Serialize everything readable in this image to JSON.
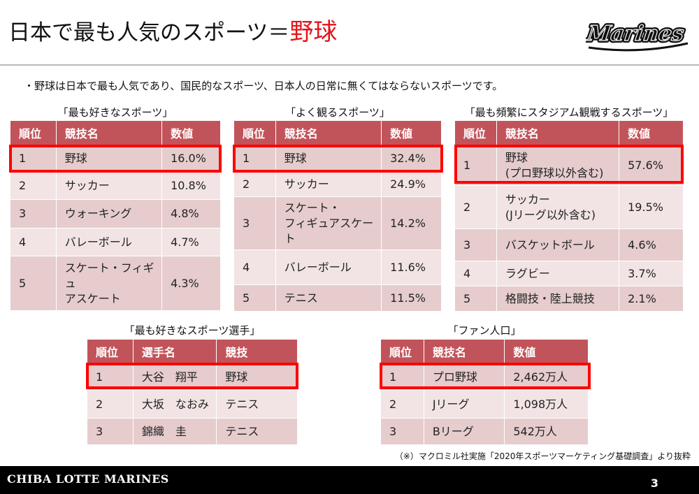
{
  "header": {
    "title_main": "日本で最も人気のスポーツ＝",
    "title_accent": "野球",
    "logo_text": "Marines",
    "accent_color": "#e5141a"
  },
  "intro": "・野球は日本で最も人気であり、国民的なスポーツ、日本人の日常に無くてはならないスポーツです。",
  "favorite_sports": {
    "caption": "「最も好きなスポーツ」",
    "headers": [
      "順位",
      "競技名",
      "数値"
    ],
    "rows": [
      {
        "rank": "1",
        "name": "野球",
        "value": "16.0%"
      },
      {
        "rank": "2",
        "name": "サッカー",
        "value": "10.8%"
      },
      {
        "rank": "3",
        "name": "ウォーキング",
        "value": "4.8%"
      },
      {
        "rank": "4",
        "name": "バレーボール",
        "value": "4.7%"
      },
      {
        "rank": "5",
        "name": "スケート・フィギュ\nアスケート",
        "value": "4.3%"
      }
    ]
  },
  "watched_sports": {
    "caption": "「よく観るスポーツ」",
    "headers": [
      "順位",
      "競技名",
      "数値"
    ],
    "rows": [
      {
        "rank": "1",
        "name": "野球",
        "value": "32.4%"
      },
      {
        "rank": "2",
        "name": "サッカー",
        "value": "24.9%"
      },
      {
        "rank": "3",
        "name": "スケート・\nフィギュアスケート",
        "value": "14.2%"
      },
      {
        "rank": "4",
        "name": "バレーボール",
        "value": "11.6%"
      },
      {
        "rank": "5",
        "name": "テニス",
        "value": "11.5%"
      }
    ]
  },
  "stadium_sports": {
    "caption": "「最も頻繁にスタジアム観戦するスポーツ」",
    "headers": [
      "順位",
      "競技名",
      "数値"
    ],
    "rows": [
      {
        "rank": "1",
        "name": "野球\n(プロ野球以外含む)",
        "value": "57.6%"
      },
      {
        "rank": "2",
        "name": "サッカー\n(Jリーグ以外含む)",
        "value": "19.5%"
      },
      {
        "rank": "3",
        "name": "バスケットボール",
        "value": "4.6%"
      },
      {
        "rank": "4",
        "name": "ラグビー",
        "value": "3.7%"
      },
      {
        "rank": "5",
        "name": "格闘技・陸上競技",
        "value": "2.1%"
      }
    ]
  },
  "favorite_athletes": {
    "caption": "「最も好きなスポーツ選手」",
    "headers": [
      "順位",
      "選手名",
      "競技"
    ],
    "rows": [
      {
        "rank": "1",
        "name": "大谷　翔平",
        "value": "野球"
      },
      {
        "rank": "2",
        "name": "大坂　なおみ",
        "value": "テニス"
      },
      {
        "rank": "3",
        "name": "錦織　圭",
        "value": "テニス"
      }
    ]
  },
  "fan_population": {
    "caption": "「ファン人口」",
    "headers": [
      "順位",
      "競技名",
      "数値"
    ],
    "rows": [
      {
        "rank": "1",
        "name": "プロ野球",
        "value": "2,462万人"
      },
      {
        "rank": "2",
        "name": "Jリーグ",
        "value": "1,098万人"
      },
      {
        "rank": "3",
        "name": "Bリーグ",
        "value": "542万人"
      }
    ]
  },
  "source": "（※）マクロミル社実施「2020年スポーツマーケティング基礎調査」より抜粋",
  "footer": {
    "brand": "CHIBA LOTTE MARINES",
    "page_number": "3"
  }
}
